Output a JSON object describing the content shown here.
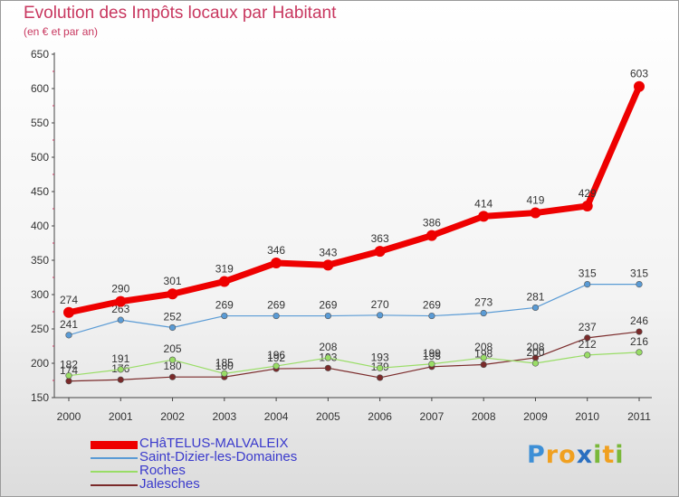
{
  "header": {
    "title": "Evolution des Impôts locaux par Habitant",
    "subtitle": "(en € et par an)"
  },
  "logo": {
    "letters": [
      "P",
      "r",
      "o",
      "x",
      "i",
      "t",
      "i"
    ],
    "colors": [
      "#3d8fd6",
      "#f0a020",
      "#f0a020",
      "#2a6fc0",
      "#7ab83a",
      "#f0a020",
      "#7ab83a"
    ]
  },
  "chart_data": {
    "type": "line",
    "x": [
      "2000",
      "2001",
      "2002",
      "2003",
      "2004",
      "2005",
      "2006",
      "2007",
      "2008",
      "2009",
      "2010",
      "2011"
    ],
    "ylim": [
      150,
      650
    ],
    "yticks": [
      150,
      200,
      250,
      300,
      350,
      400,
      450,
      500,
      550,
      600,
      650
    ],
    "grid": false,
    "legend_position": "bottom-left",
    "series": [
      {
        "name": "CHâTELUS-MALVALEIX",
        "color": "#ee0000",
        "values": [
          274,
          290,
          301,
          319,
          346,
          343,
          363,
          386,
          414,
          419,
          429,
          603
        ]
      },
      {
        "name": "Saint-Dizier-les-Domaines",
        "color": "#5a9bd5",
        "values": [
          241,
          263,
          252,
          269,
          269,
          269,
          270,
          269,
          273,
          281,
          315,
          315
        ]
      },
      {
        "name": "Roches",
        "color": "#99dd66",
        "values": [
          182,
          191,
          205,
          185,
          196,
          208,
          193,
          199,
          208,
          200,
          212,
          216
        ]
      },
      {
        "name": "Jalesches",
        "color": "#7a2a2a",
        "values": [
          174,
          176,
          180,
          180,
          192,
          193,
          179,
          195,
          198,
          208,
          237,
          246
        ]
      }
    ]
  }
}
